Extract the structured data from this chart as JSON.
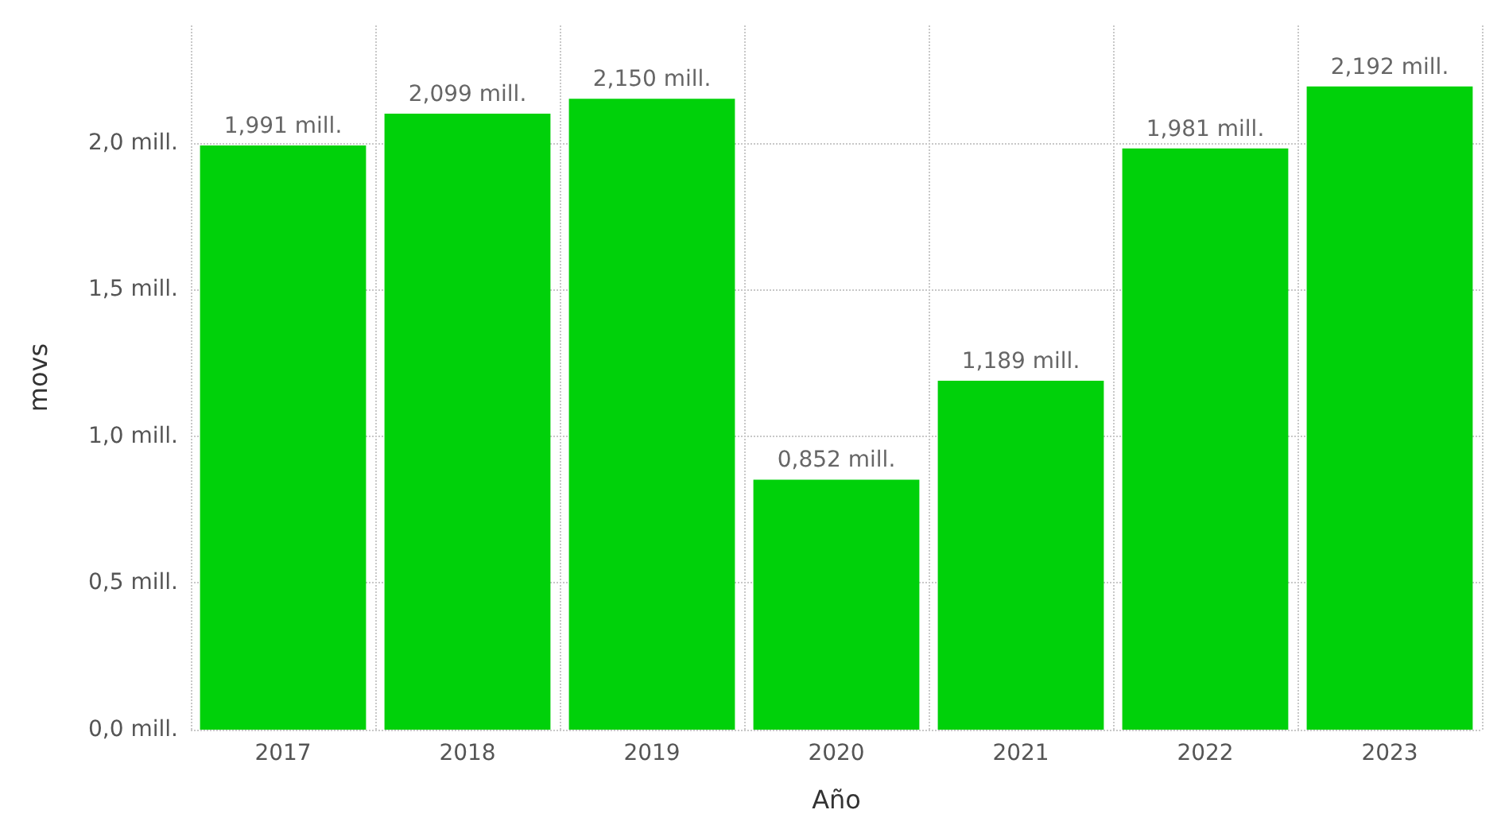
{
  "chart_data": {
    "type": "bar",
    "xlabel": "Año",
    "ylabel": "movs",
    "categories": [
      "2017",
      "2018",
      "2019",
      "2020",
      "2021",
      "2022",
      "2023"
    ],
    "values": [
      1.991,
      2.099,
      2.15,
      0.852,
      1.189,
      1.981,
      2.192
    ],
    "value_labels": [
      "1,991 mill.",
      "2,099 mill.",
      "2,150 mill.",
      "0,852 mill.",
      "1,189 mill.",
      "1,981 mill.",
      "2,192 mill."
    ],
    "color": "#00d10a",
    "ylim": [
      0,
      2.4
    ],
    "yticks": [
      {
        "value": 0,
        "label": "0,0 mill."
      },
      {
        "value": 0.5,
        "label": "0,5 mill."
      },
      {
        "value": 1,
        "label": "1,0 mill."
      },
      {
        "value": 1.5,
        "label": "1,5 mill."
      },
      {
        "value": 2,
        "label": "2,0 mill."
      }
    ],
    "grid": true
  }
}
